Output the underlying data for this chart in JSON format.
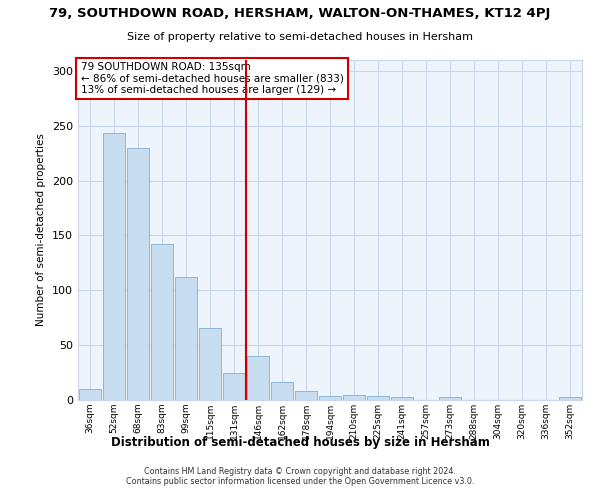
{
  "title_line1": "79, SOUTHDOWN ROAD, HERSHAM, WALTON-ON-THAMES, KT12 4PJ",
  "title_line2": "Size of property relative to semi-detached houses in Hersham",
  "xlabel": "Distribution of semi-detached houses by size in Hersham",
  "ylabel": "Number of semi-detached properties",
  "annotation_line1": "79 SOUTHDOWN ROAD: 135sqm",
  "annotation_line2": "← 86% of semi-detached houses are smaller (833)",
  "annotation_line3": "13% of semi-detached houses are larger (129) →",
  "categories": [
    "36sqm",
    "52sqm",
    "68sqm",
    "83sqm",
    "99sqm",
    "115sqm",
    "131sqm",
    "146sqm",
    "162sqm",
    "178sqm",
    "194sqm",
    "210sqm",
    "225sqm",
    "241sqm",
    "257sqm",
    "273sqm",
    "288sqm",
    "304sqm",
    "320sqm",
    "336sqm",
    "352sqm"
  ],
  "values": [
    10,
    243,
    230,
    142,
    112,
    66,
    25,
    40,
    16,
    8,
    4,
    5,
    4,
    3,
    0,
    3,
    0,
    0,
    0,
    0,
    3
  ],
  "bar_color": "#c8ddf0",
  "bar_edge_color": "#7fafd6",
  "vline_color": "#cc0000",
  "vline_position": 6.5,
  "annotation_box_color": "#cc0000",
  "footer_line1": "Contains HM Land Registry data © Crown copyright and database right 2024.",
  "footer_line2": "Contains public sector information licensed under the Open Government Licence v3.0.",
  "ylim": [
    0,
    310
  ],
  "yticks": [
    0,
    50,
    100,
    150,
    200,
    250,
    300
  ],
  "background_color": "#ffffff",
  "grid_color": "#c8d8e8"
}
